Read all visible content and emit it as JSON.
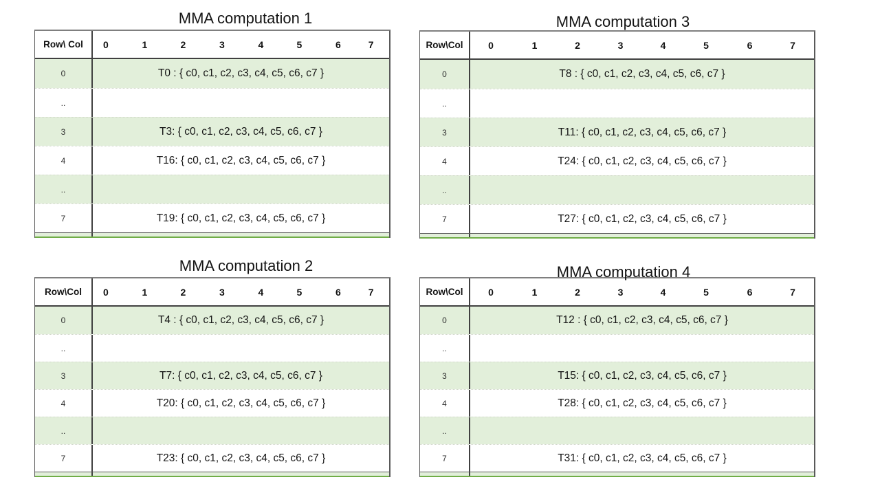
{
  "colors": {
    "row_highlight_green": "#e2efda",
    "table_bottom_green_line": "#70ad47",
    "header_separator": "#404040",
    "outer_border_gray": "#7f7f7f"
  },
  "tables": [
    {
      "title": "MMA computation 1",
      "corner_label": "Row\\ Col",
      "col_headers": [
        "0",
        "1",
        "2",
        "3",
        "4",
        "5",
        "6",
        "7"
      ],
      "rows": [
        {
          "label": "0",
          "value": "T0 : { c0, c1, c2, c3, c4, c5, c6, c7 }"
        },
        {
          "label": "..",
          "value": ""
        },
        {
          "label": "3",
          "value": "T3: { c0, c1, c2, c3, c4, c5, c6, c7 }"
        },
        {
          "label": "4",
          "value": "T16: { c0, c1, c2, c3, c4, c5, c6, c7 }"
        },
        {
          "label": "..",
          "value": ""
        },
        {
          "label": "7",
          "value": "T19: { c0, c1, c2, c3, c4, c5, c6, c7 }"
        }
      ]
    },
    {
      "title": "MMA computation 2",
      "corner_label": "Row\\Col",
      "col_headers": [
        "0",
        "1",
        "2",
        "3",
        "4",
        "5",
        "6",
        "7"
      ],
      "rows": [
        {
          "label": "0",
          "value": "T4 : { c0, c1, c2, c3, c4, c5, c6, c7 }"
        },
        {
          "label": "..",
          "value": ""
        },
        {
          "label": "3",
          "value": "T7: { c0, c1, c2, c3, c4, c5, c6, c7 }"
        },
        {
          "label": "4",
          "value": "T20: { c0, c1, c2, c3, c4, c5, c6, c7 }"
        },
        {
          "label": "..",
          "value": ""
        },
        {
          "label": "7",
          "value": "T23: { c0, c1, c2, c3, c4, c5, c6, c7 }"
        }
      ]
    },
    {
      "title": "MMA computation 3",
      "corner_label": "Row\\Col",
      "col_headers": [
        "0",
        "1",
        "2",
        "3",
        "4",
        "5",
        "6",
        "7"
      ],
      "rows": [
        {
          "label": "0",
          "value": "T8 : { c0, c1, c2, c3, c4, c5, c6, c7 }"
        },
        {
          "label": "..",
          "value": ""
        },
        {
          "label": "3",
          "value": "T11: { c0, c1, c2, c3, c4, c5, c6, c7 }"
        },
        {
          "label": "4",
          "value": "T24: { c0, c1, c2, c3, c4, c5, c6, c7 }"
        },
        {
          "label": "..",
          "value": ""
        },
        {
          "label": "7",
          "value": "T27: { c0, c1, c2, c3, c4, c5, c6, c7 }"
        }
      ]
    },
    {
      "title": "MMA computation 4",
      "corner_label": "Row\\Col",
      "col_headers": [
        "0",
        "1",
        "2",
        "3",
        "4",
        "5",
        "6",
        "7"
      ],
      "rows": [
        {
          "label": "0",
          "value": "T12 : { c0, c1, c2, c3, c4, c5, c6, c7 }"
        },
        {
          "label": "..",
          "value": ""
        },
        {
          "label": "3",
          "value": "T15: { c0, c1, c2, c3, c4, c5, c6, c7 }"
        },
        {
          "label": "4",
          "value": "T28: { c0, c1, c2, c3, c4, c5, c6, c7 }"
        },
        {
          "label": "..",
          "value": ""
        },
        {
          "label": "7",
          "value": "T31: { c0, c1, c2, c3, c4, c5, c6, c7 }"
        }
      ]
    }
  ]
}
